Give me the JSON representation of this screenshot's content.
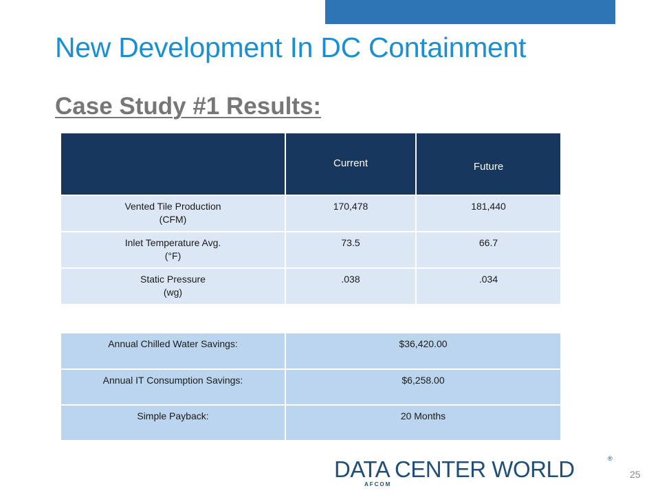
{
  "slide": {
    "title": "New Development In DC Containment",
    "subtitle": "Case Study #1 Results:",
    "page_number": "25"
  },
  "results_table": {
    "headers": [
      "",
      "Current",
      "Future"
    ],
    "rows": [
      {
        "label_line1": "Vented Tile Production",
        "label_line2": "(CFM)",
        "current": "170,478",
        "future": "181,440"
      },
      {
        "label_line1": "Inlet Temperature Avg.",
        "label_line2": "(°F)",
        "current": "73.5",
        "future": "66.7"
      },
      {
        "label_line1": "Static Pressure",
        "label_line2": "(wg)",
        "current": ".038",
        "future": ".034"
      }
    ]
  },
  "savings_table": {
    "rows": [
      {
        "label": "Annual Chilled Water Savings:",
        "value": "$36,420.00"
      },
      {
        "label": "Annual IT Consumption Savings:",
        "value": "$6,258.00"
      },
      {
        "label": "Simple Payback:",
        "value": "20 Months"
      }
    ]
  },
  "logo": {
    "main": "DATA CENTER WORLD",
    "sub": "AFCOM",
    "mark": "®"
  },
  "colors": {
    "title": "#1a8fd1",
    "header_bg": "#17375e",
    "row_bg": "#dbe7f5",
    "savings_bg": "#bcd5ee",
    "top_bar": "#2e75b6"
  }
}
